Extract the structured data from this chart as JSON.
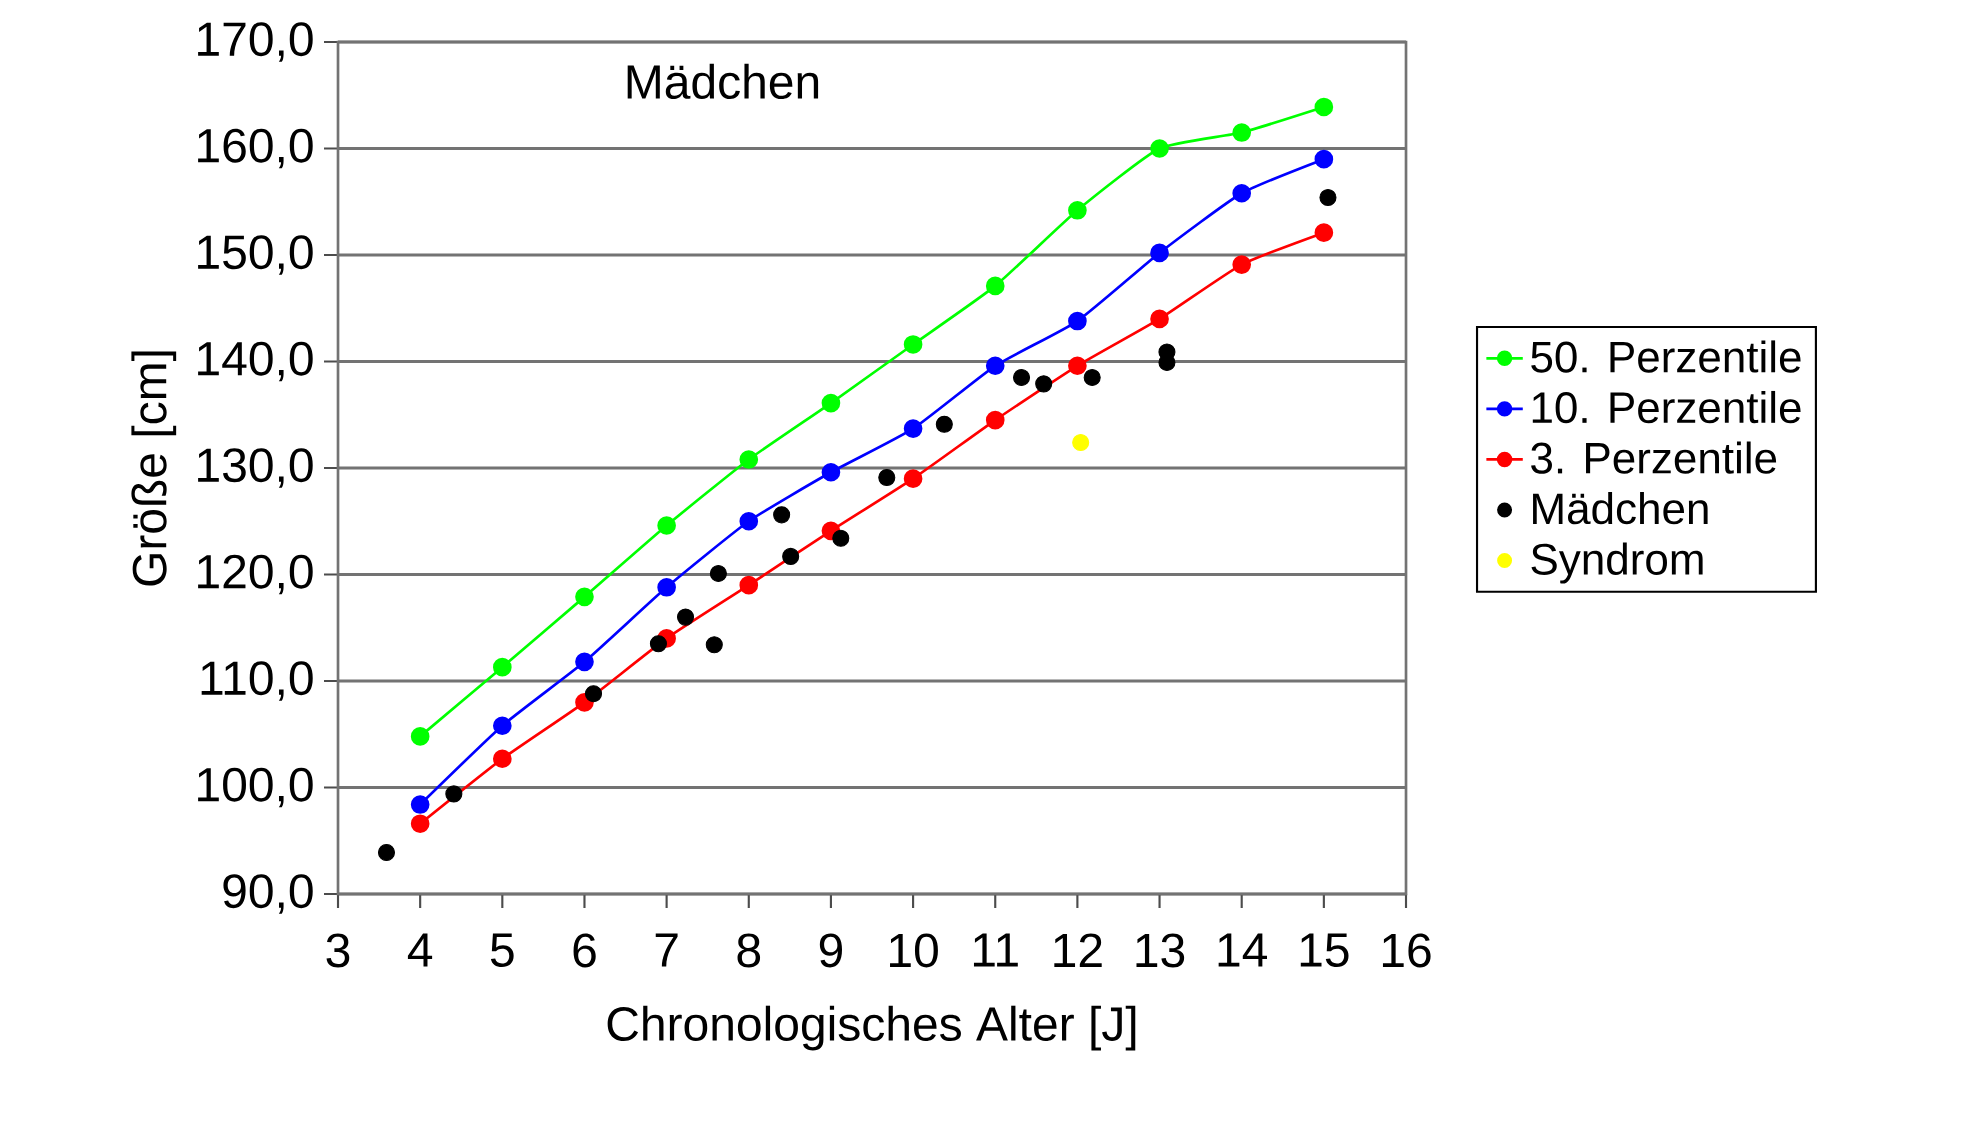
{
  "chart_data": {
    "type": "line",
    "title": "Mädchen",
    "xlabel": "Chronologisches Alter [J]",
    "ylabel": "Größe [cm]",
    "xlim": [
      3,
      16
    ],
    "xticks": [
      3,
      4,
      5,
      6,
      7,
      8,
      9,
      10,
      11,
      12,
      13,
      14,
      15,
      16
    ],
    "ylim": [
      90,
      170
    ],
    "yticks": [
      {
        "value": 90,
        "label": "90,0"
      },
      {
        "value": 100,
        "label": "100,0"
      },
      {
        "value": 110,
        "label": "110,0"
      },
      {
        "value": 120,
        "label": "120,0"
      },
      {
        "value": 130,
        "label": "130,0"
      },
      {
        "value": 140,
        "label": "140,0"
      },
      {
        "value": 150,
        "label": "150,0"
      },
      {
        "value": 160,
        "label": "160,0"
      },
      {
        "value": 170,
        "label": "170,0"
      }
    ],
    "grid": "y",
    "legend": "right",
    "marker": "circle",
    "line_style": "solid",
    "series": [
      {
        "name": "50. Perzentile",
        "color": "#00ff00",
        "x": [
          4,
          5,
          6,
          7,
          8,
          9,
          10,
          11,
          12,
          13,
          14,
          15
        ],
        "values": [
          104.8,
          111.3,
          117.9,
          124.6,
          130.8,
          136.1,
          141.6,
          147.1,
          154.2,
          160.0,
          161.5,
          163.9
        ]
      },
      {
        "name": "10. Perzentile",
        "color": "#0000ff",
        "x": [
          4,
          5,
          6,
          7,
          8,
          9,
          10,
          11,
          12,
          13,
          14,
          15
        ],
        "values": [
          98.4,
          105.8,
          111.8,
          118.8,
          125.0,
          129.6,
          133.7,
          139.6,
          143.8,
          150.2,
          155.8,
          159.0
        ]
      },
      {
        "name": "3. Perzentile",
        "color": "#ff0000",
        "x": [
          4,
          5,
          6,
          7,
          8,
          9,
          10,
          11,
          12,
          13,
          14,
          15
        ],
        "values": [
          96.6,
          102.7,
          108.0,
          114.0,
          119.0,
          124.1,
          129.0,
          134.5,
          139.6,
          144.0,
          149.1,
          152.1
        ]
      },
      {
        "name": "Mädchen",
        "type": "scatter",
        "color": "#000000",
        "x": [
          3.59,
          4.41,
          6.11,
          6.9,
          7.23,
          7.58,
          7.63,
          8.4,
          8.51,
          9.12,
          9.68,
          10.38,
          11.32,
          11.59,
          12.18,
          13.09,
          13.09,
          15.05
        ],
        "values": [
          93.9,
          99.4,
          108.8,
          113.5,
          116.0,
          113.4,
          120.1,
          125.6,
          121.7,
          123.4,
          129.1,
          134.1,
          138.5,
          137.9,
          138.5,
          140.9,
          139.9,
          155.4
        ]
      },
      {
        "name": "Syndrom",
        "type": "scatter",
        "color": "#ffff00",
        "x": [
          12.04
        ],
        "values": [
          132.4
        ]
      }
    ]
  }
}
